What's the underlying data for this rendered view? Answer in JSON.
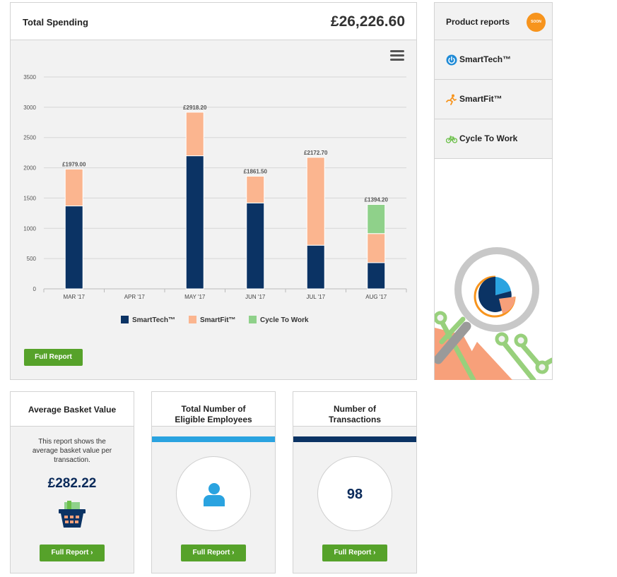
{
  "spending": {
    "title": "Total Spending",
    "total": "£26,226.60",
    "full_report": "Full Report"
  },
  "chart_data": {
    "type": "bar",
    "stacked": true,
    "categories": [
      "MAR '17",
      "APR '17",
      "MAY '17",
      "JUN '17",
      "JUL '17",
      "AUG '17"
    ],
    "series": [
      {
        "name": "SmartTech™",
        "color": "#0b3364",
        "values": [
          1370,
          0,
          2198.2,
          1418.5,
          720.7,
          433.2
        ]
      },
      {
        "name": "SmartFit™",
        "color": "#fbb58f",
        "values": [
          609,
          0,
          720,
          443,
          1452,
          480
        ]
      },
      {
        "name": "Cycle To Work",
        "color": "#8fd18a",
        "values": [
          0,
          0,
          0,
          0,
          0,
          481
        ]
      }
    ],
    "totals_labels": [
      "£1979.00",
      "",
      "£2918.20",
      "£1861.50",
      "£2172.70",
      "£1394.20"
    ],
    "yticks": [
      0,
      500,
      1000,
      1500,
      2000,
      2500,
      3000,
      3500
    ],
    "ylim": [
      0,
      3500
    ],
    "grid": true,
    "legend": "bottom-center"
  },
  "products": {
    "title": "Product reports",
    "badge": "SOON",
    "items": [
      {
        "label": "SmartTech™",
        "icon": "power-icon"
      },
      {
        "label": "SmartFit™",
        "icon": "runner-icon"
      },
      {
        "label": "Cycle To Work",
        "icon": "bicycle-icon"
      }
    ]
  },
  "basket": {
    "title": "Average Basket Value",
    "description": "This report shows the average basket value per transaction.",
    "value": "£282.22",
    "full_report": "Full Report ›"
  },
  "employees": {
    "title": "Total Number of Eligible Employees",
    "stripe_color": "#2aa3e0",
    "full_report": "Full Report ›"
  },
  "transactions": {
    "title": "Number of Transactions",
    "stripe_color": "#0b3364",
    "count": "98",
    "full_report": "Full Report ›"
  }
}
